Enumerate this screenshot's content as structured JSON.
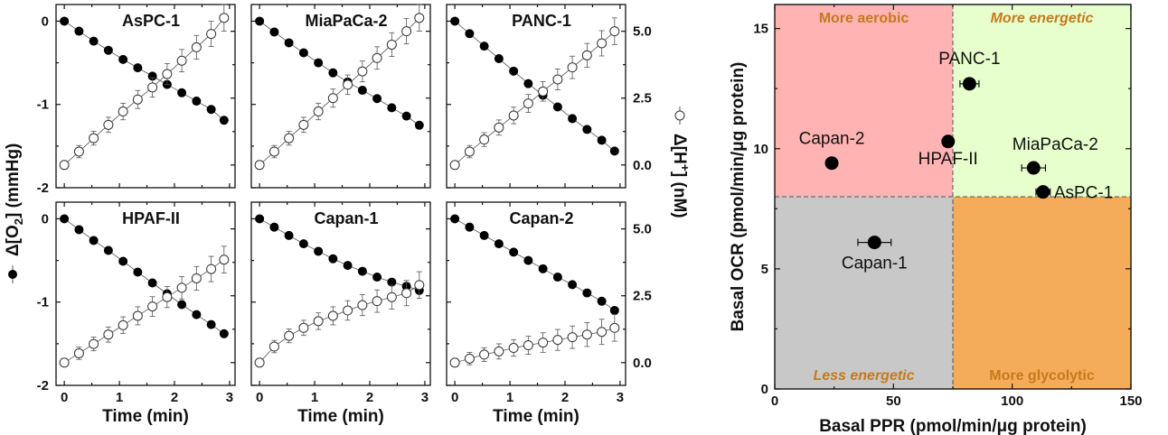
{
  "chart_data": [
    {
      "type": "scatter",
      "title": "AsPC-1",
      "xlabel": "Time (min)",
      "ylabel_left": "Δ[O2] (mmHg)",
      "ylabel_right": "Δ[H+] (nM)",
      "xlim": [
        -0.15,
        3.1
      ],
      "ylim_left": [
        -2,
        0.2
      ],
      "ylim_right": [
        -0.85,
        6.0
      ],
      "x_ticks": [
        "0",
        "1",
        "2",
        "3"
      ],
      "y_left_ticks": [
        "0",
        "-1",
        "-2"
      ],
      "y_right_ticks": [
        "0.0",
        "2.5",
        "5.0"
      ],
      "series": [
        {
          "marker": "filled",
          "axis": "left",
          "x": [
            0,
            0.267,
            0.533,
            0.8,
            1.067,
            1.333,
            1.6,
            1.867,
            2.133,
            2.4,
            2.667,
            2.9
          ],
          "y": [
            0,
            -0.12,
            -0.24,
            -0.35,
            -0.46,
            -0.56,
            -0.66,
            -0.76,
            -0.86,
            -0.96,
            -1.06,
            -1.19
          ]
        },
        {
          "marker": "open",
          "axis": "right",
          "x": [
            0,
            0.267,
            0.533,
            0.8,
            1.067,
            1.333,
            1.6,
            1.867,
            2.133,
            2.4,
            2.667,
            2.9
          ],
          "y": [
            0.0,
            0.5,
            1.0,
            1.5,
            2.0,
            2.45,
            2.9,
            3.4,
            3.9,
            4.4,
            4.9,
            5.5
          ]
        }
      ]
    },
    {
      "type": "scatter",
      "title": "MiaPaCa-2",
      "xlabel": "Time (min)",
      "xlim": [
        -0.15,
        3.1
      ],
      "ylim_left": [
        -2,
        0.2
      ],
      "ylim_right": [
        -0.85,
        6.0
      ],
      "x_ticks": [
        "0",
        "1",
        "2",
        "3"
      ],
      "series": [
        {
          "marker": "filled",
          "axis": "left",
          "x": [
            0,
            0.267,
            0.533,
            0.8,
            1.067,
            1.333,
            1.6,
            1.867,
            2.133,
            2.4,
            2.667,
            2.9
          ],
          "y": [
            0,
            -0.13,
            -0.26,
            -0.38,
            -0.5,
            -0.62,
            -0.73,
            -0.83,
            -0.93,
            -1.04,
            -1.14,
            -1.25
          ]
        },
        {
          "marker": "open",
          "axis": "right",
          "x": [
            0,
            0.267,
            0.533,
            0.8,
            1.067,
            1.333,
            1.6,
            1.867,
            2.133,
            2.4,
            2.667,
            2.9
          ],
          "y": [
            0.0,
            0.5,
            1.0,
            1.5,
            2.0,
            2.5,
            3.0,
            3.5,
            4.0,
            4.5,
            5.0,
            5.5
          ]
        }
      ]
    },
    {
      "type": "scatter",
      "title": "PANC-1",
      "xlabel": "Time (min)",
      "xlim": [
        -0.15,
        3.1
      ],
      "ylim_left": [
        -2,
        0.2
      ],
      "ylim_right": [
        -0.85,
        6.0
      ],
      "x_ticks": [
        "0",
        "1",
        "2",
        "3"
      ],
      "series": [
        {
          "marker": "filled",
          "axis": "left",
          "x": [
            0,
            0.267,
            0.533,
            0.8,
            1.067,
            1.333,
            1.6,
            1.867,
            2.133,
            2.4,
            2.667,
            2.9
          ],
          "y": [
            0,
            -0.15,
            -0.3,
            -0.45,
            -0.6,
            -0.75,
            -0.89,
            -1.03,
            -1.17,
            -1.3,
            -1.43,
            -1.56
          ]
        },
        {
          "marker": "open",
          "axis": "right",
          "x": [
            0,
            0.267,
            0.533,
            0.8,
            1.067,
            1.333,
            1.6,
            1.867,
            2.133,
            2.4,
            2.667,
            2.9
          ],
          "y": [
            0.0,
            0.5,
            0.95,
            1.4,
            1.85,
            2.3,
            2.75,
            3.2,
            3.65,
            4.1,
            4.55,
            5.0
          ]
        }
      ]
    },
    {
      "type": "scatter",
      "title": "HPAF-II",
      "xlabel": "Time (min)",
      "xlim": [
        -0.15,
        3.1
      ],
      "ylim_left": [
        -2,
        0.2
      ],
      "ylim_right": [
        -0.85,
        6.0
      ],
      "x_ticks": [
        "0",
        "1",
        "2",
        "3"
      ],
      "series": [
        {
          "marker": "filled",
          "axis": "left",
          "x": [
            0,
            0.267,
            0.533,
            0.8,
            1.067,
            1.333,
            1.6,
            1.867,
            2.133,
            2.4,
            2.667,
            2.9
          ],
          "y": [
            0,
            -0.13,
            -0.26,
            -0.38,
            -0.51,
            -0.64,
            -0.77,
            -0.9,
            -1.03,
            -1.15,
            -1.27,
            -1.38
          ]
        },
        {
          "marker": "open",
          "axis": "right",
          "x": [
            0,
            0.267,
            0.533,
            0.8,
            1.067,
            1.333,
            1.6,
            1.867,
            2.133,
            2.4,
            2.667,
            2.9
          ],
          "y": [
            0.0,
            0.35,
            0.7,
            1.05,
            1.4,
            1.75,
            2.1,
            2.45,
            2.8,
            3.15,
            3.5,
            3.85
          ]
        }
      ]
    },
    {
      "type": "scatter",
      "title": "Capan-1",
      "xlabel": "Time (min)",
      "xlim": [
        -0.15,
        3.1
      ],
      "ylim_left": [
        -2,
        0.2
      ],
      "ylim_right": [
        -0.85,
        6.0
      ],
      "x_ticks": [
        "0",
        "1",
        "2",
        "3"
      ],
      "series": [
        {
          "marker": "filled",
          "axis": "left",
          "x": [
            0,
            0.267,
            0.533,
            0.8,
            1.067,
            1.333,
            1.6,
            1.867,
            2.133,
            2.4,
            2.667,
            2.9
          ],
          "y": [
            0,
            -0.1,
            -0.2,
            -0.3,
            -0.39,
            -0.48,
            -0.56,
            -0.63,
            -0.7,
            -0.76,
            -0.81,
            -0.86
          ]
        },
        {
          "marker": "open",
          "axis": "right",
          "x": [
            0,
            0.267,
            0.533,
            0.8,
            1.067,
            1.333,
            1.6,
            1.867,
            2.133,
            2.4,
            2.667,
            2.9
          ],
          "y": [
            0.0,
            0.6,
            1.0,
            1.3,
            1.55,
            1.75,
            1.95,
            2.15,
            2.3,
            2.45,
            2.6,
            2.9
          ]
        }
      ]
    },
    {
      "type": "scatter",
      "title": "Capan-2",
      "xlabel": "Time (min)",
      "xlim": [
        -0.15,
        3.1
      ],
      "ylim_left": [
        -2,
        0.2
      ],
      "ylim_right": [
        -0.85,
        6.0
      ],
      "x_ticks": [
        "0",
        "1",
        "2",
        "3"
      ],
      "series": [
        {
          "marker": "filled",
          "axis": "left",
          "x": [
            0,
            0.267,
            0.533,
            0.8,
            1.067,
            1.333,
            1.6,
            1.867,
            2.133,
            2.4,
            2.667,
            2.9
          ],
          "y": [
            0,
            -0.1,
            -0.2,
            -0.3,
            -0.4,
            -0.5,
            -0.6,
            -0.7,
            -0.79,
            -0.89,
            -0.99,
            -1.1
          ]
        },
        {
          "marker": "open",
          "axis": "right",
          "x": [
            0,
            0.267,
            0.533,
            0.8,
            1.067,
            1.333,
            1.6,
            1.867,
            2.133,
            2.4,
            2.667,
            2.9
          ],
          "y": [
            0.0,
            0.15,
            0.3,
            0.42,
            0.55,
            0.65,
            0.75,
            0.85,
            0.95,
            1.05,
            1.15,
            1.3
          ]
        }
      ]
    },
    {
      "type": "scatter",
      "xlabel": "Basal PPR (pmol/min/μg protein)",
      "ylabel": "Basal OCR (pmol/min/μg protein)",
      "xlim": [
        0,
        150
      ],
      "ylim": [
        0,
        16
      ],
      "x_ticks": [
        "0",
        "50",
        "100",
        "150"
      ],
      "y_ticks": [
        "0",
        "5",
        "10",
        "15"
      ],
      "divider": {
        "x": 75,
        "y": 8
      },
      "quadrants": [
        {
          "label": "More aerobic",
          "fill": "#ffb3b3",
          "italic": false
        },
        {
          "label": "More energetic",
          "fill": "#e6ffcc",
          "italic": true
        },
        {
          "label": "Less energetic",
          "fill": "#c8c8c8",
          "italic": true
        },
        {
          "label": "More glycolytic",
          "fill": "#f5ac5a",
          "italic": false
        }
      ],
      "quadrant_text_color": "#c47a1c",
      "points": [
        {
          "label": "PANC-1",
          "x": 82,
          "y": 12.7,
          "xerr": 4
        },
        {
          "label": "HPAF-II",
          "x": 73,
          "y": 10.3,
          "xerr": 0
        },
        {
          "label": "Capan-2",
          "x": 24,
          "y": 9.4,
          "xerr": 0
        },
        {
          "label": "MiaPaCa-2",
          "x": 109,
          "y": 9.2,
          "xerr": 5
        },
        {
          "label": "AsPC-1",
          "x": 113,
          "y": 8.2,
          "xerr": 3
        },
        {
          "label": "Capan-1",
          "x": 42,
          "y": 6.1,
          "xerr": 7
        }
      ]
    }
  ]
}
